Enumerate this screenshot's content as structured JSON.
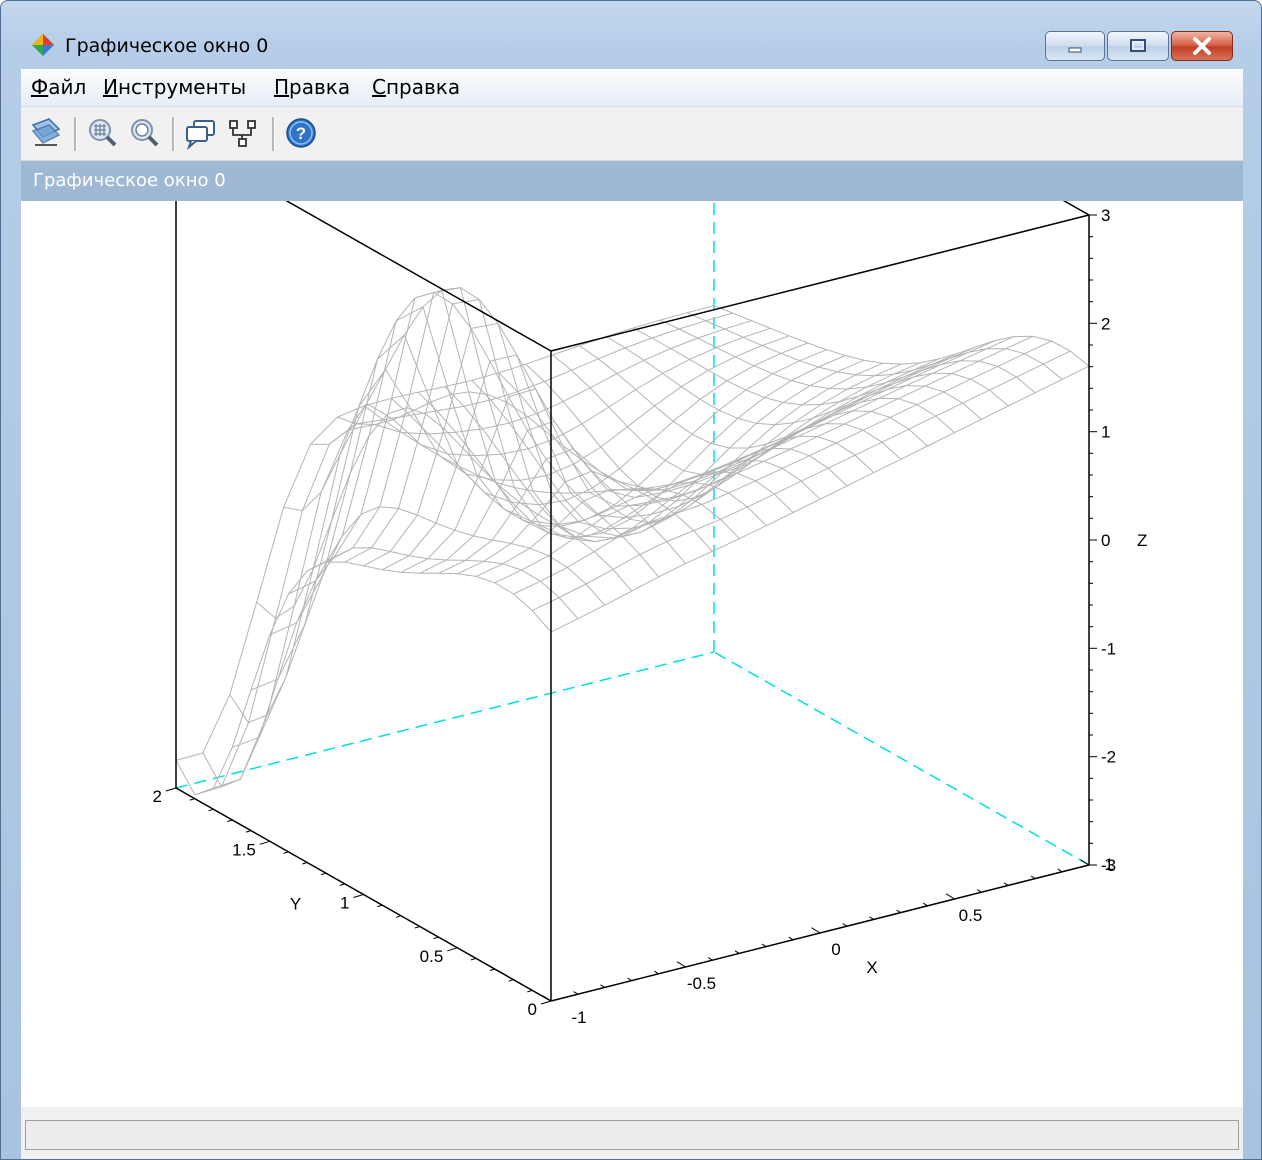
{
  "window": {
    "title": "Графическое окно 0",
    "minimize_label": "Свернуть",
    "maximize_label": "Развернуть",
    "close_label": "Закрыть"
  },
  "menu": {
    "file": {
      "accel": "Ф",
      "rest": "айл"
    },
    "tools": {
      "accel": "И",
      "rest": "нструменты"
    },
    "edit": {
      "accel": "П",
      "rest": "равка"
    },
    "help": {
      "accel": "С",
      "rest": "правка"
    }
  },
  "toolbar": {
    "buttons": [
      "rotate-2d-3d-icon",
      "zoom-icon",
      "unzoom-icon",
      "datatip-icon",
      "editor-icon",
      "help-icon"
    ]
  },
  "panel": {
    "title": "Графическое окно 0"
  },
  "status": {
    "text": ""
  },
  "chart_data": {
    "type": "surface",
    "title": "",
    "xlabel": "X",
    "ylabel": "Y",
    "zlabel": "Z",
    "xlim": [
      -1,
      1
    ],
    "ylim": [
      0,
      2
    ],
    "zlim": [
      -3,
      3
    ],
    "x_ticks": [
      "-1",
      "-0.5",
      "0",
      "0.5",
      "1"
    ],
    "y_ticks": [
      "0",
      "0.5",
      "1",
      "1.5",
      "2"
    ],
    "z_ticks": [
      "-3",
      "-2",
      "-1",
      "0",
      "1",
      "2",
      "3"
    ],
    "grid": {
      "x_count": 21,
      "y_count": 21
    },
    "mesh_color": "#b4b4b4",
    "box_color": "#000000",
    "hidden_axis_color": "#00e0e0",
    "description_function": "surface mesh over x in [-1,1], y in [0,2]"
  }
}
